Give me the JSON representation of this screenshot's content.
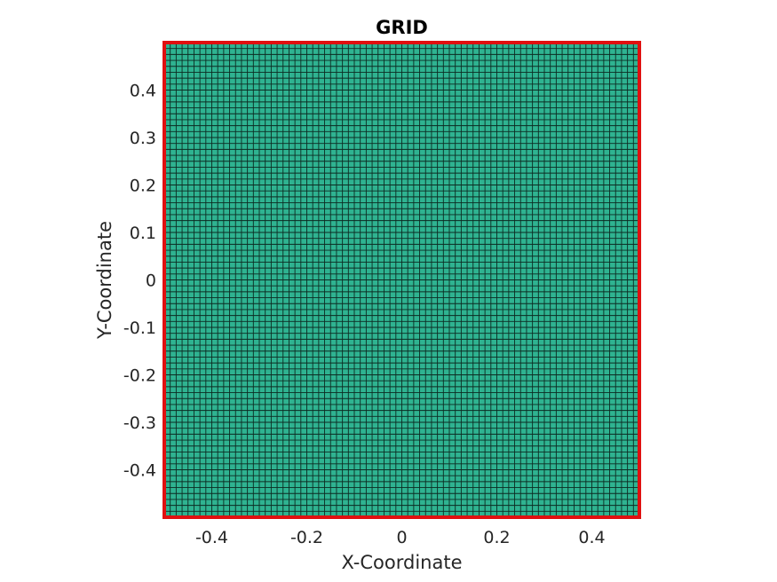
{
  "chart_data": {
    "type": "mesh",
    "title": "GRID",
    "xlabel": "X-Coordinate",
    "ylabel": "Y-Coordinate",
    "xlim": [
      -0.5,
      0.5
    ],
    "ylim": [
      -0.5,
      0.5
    ],
    "x_ticks": [
      {
        "value": -0.4,
        "label": "-0.4"
      },
      {
        "value": -0.2,
        "label": "-0.2"
      },
      {
        "value": 0,
        "label": "0"
      },
      {
        "value": 0.2,
        "label": "0.2"
      },
      {
        "value": 0.4,
        "label": "0.4"
      }
    ],
    "y_ticks": [
      {
        "value": 0.4,
        "label": "0.4"
      },
      {
        "value": 0.3,
        "label": "0.3"
      },
      {
        "value": 0.2,
        "label": "0.2"
      },
      {
        "value": 0.1,
        "label": "0.1"
      },
      {
        "value": 0,
        "label": "0"
      },
      {
        "value": -0.1,
        "label": "-0.1"
      },
      {
        "value": -0.2,
        "label": "-0.2"
      },
      {
        "value": -0.3,
        "label": "-0.3"
      },
      {
        "value": -0.4,
        "label": "-0.4"
      }
    ],
    "mesh": {
      "nx": 80,
      "ny": 80,
      "face_color": "#2fb391",
      "edge_color": "#0d2b22",
      "boundary_color": "#e01010"
    }
  }
}
